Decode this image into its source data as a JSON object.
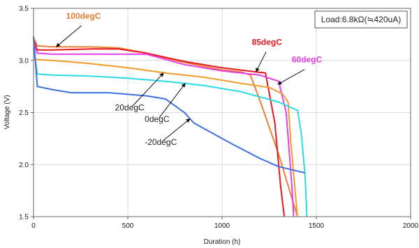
{
  "chart_data": {
    "type": "line",
    "xlabel": "Duration (h)",
    "ylabel": "Voltage (V)",
    "xlim": [
      0,
      2000
    ],
    "ylim": [
      1.5,
      3.5
    ],
    "x_ticks": [
      "0",
      "500",
      "1000",
      "1500",
      "2000"
    ],
    "y_ticks": [
      "1.5",
      "2.0",
      "2.5",
      "3.0",
      "3.5"
    ],
    "load_annotation": "Load:6.8kΩ(≒420uA)",
    "series": [
      {
        "name": "100degC",
        "color": "#ED7D31",
        "points": [
          [
            0,
            3.22
          ],
          [
            20,
            3.14
          ],
          [
            100,
            3.13
          ],
          [
            300,
            3.13
          ],
          [
            450,
            3.12
          ],
          [
            600,
            3.07
          ],
          [
            800,
            2.98
          ],
          [
            1000,
            2.91
          ],
          [
            1100,
            2.89
          ],
          [
            1150,
            2.86
          ],
          [
            1200,
            2.62
          ],
          [
            1300,
            2.1
          ],
          [
            1400,
            1.5
          ]
        ]
      },
      {
        "name": "85degC",
        "color": "#E8171E",
        "points": [
          [
            0,
            3.2
          ],
          [
            20,
            3.1
          ],
          [
            100,
            3.1
          ],
          [
            300,
            3.11
          ],
          [
            450,
            3.11
          ],
          [
            600,
            3.07
          ],
          [
            800,
            2.99
          ],
          [
            1000,
            2.93
          ],
          [
            1180,
            2.89
          ],
          [
            1230,
            2.88
          ],
          [
            1280,
            2.4
          ],
          [
            1310,
            1.8
          ],
          [
            1330,
            1.5
          ]
        ]
      },
      {
        "name": "60degC",
        "color": "#E83CE4",
        "points": [
          [
            0,
            3.18
          ],
          [
            20,
            3.07
          ],
          [
            100,
            3.06
          ],
          [
            300,
            3.06
          ],
          [
            600,
            3.06
          ],
          [
            800,
            2.96
          ],
          [
            1000,
            2.9
          ],
          [
            1100,
            2.88
          ],
          [
            1200,
            2.86
          ],
          [
            1300,
            2.8
          ],
          [
            1340,
            2.5
          ],
          [
            1370,
            1.8
          ],
          [
            1380,
            1.5
          ]
        ]
      },
      {
        "name": "20degC",
        "color": "#F39A2B",
        "points": [
          [
            0,
            3.01
          ],
          [
            100,
            3.0
          ],
          [
            300,
            2.97
          ],
          [
            500,
            2.93
          ],
          [
            700,
            2.88
          ],
          [
            900,
            2.84
          ],
          [
            1100,
            2.78
          ],
          [
            1250,
            2.74
          ],
          [
            1320,
            2.68
          ],
          [
            1350,
            2.6
          ],
          [
            1365,
            2.2
          ],
          [
            1380,
            1.9
          ],
          [
            1400,
            1.5
          ]
        ]
      },
      {
        "name": "0degC",
        "color": "#2CD9E4",
        "points": [
          [
            0,
            3.12
          ],
          [
            20,
            2.87
          ],
          [
            100,
            2.86
          ],
          [
            300,
            2.85
          ],
          [
            500,
            2.83
          ],
          [
            700,
            2.8
          ],
          [
            900,
            2.76
          ],
          [
            1100,
            2.7
          ],
          [
            1300,
            2.6
          ],
          [
            1400,
            2.52
          ],
          [
            1420,
            2.3
          ],
          [
            1440,
            1.9
          ],
          [
            1450,
            1.5
          ]
        ]
      },
      {
        "name": "-20degC",
        "color": "#3E6FE2",
        "points": [
          [
            0,
            3.23
          ],
          [
            20,
            2.75
          ],
          [
            100,
            2.72
          ],
          [
            200,
            2.69
          ],
          [
            400,
            2.69
          ],
          [
            600,
            2.66
          ],
          [
            700,
            2.63
          ],
          [
            800,
            2.5
          ],
          [
            850,
            2.4
          ],
          [
            950,
            2.3
          ],
          [
            1050,
            2.2
          ],
          [
            1200,
            2.06
          ],
          [
            1300,
            1.98
          ],
          [
            1440,
            1.92
          ]
        ]
      }
    ],
    "annotations": [
      {
        "text": "100degC",
        "color": "#ED7D31",
        "bold": true,
        "x": 265,
        "y": 3.4,
        "arrow_to": [
          120,
          3.13
        ]
      },
      {
        "text": "85degC",
        "color": "#E8171E",
        "bold": true,
        "x": 1238,
        "y": 3.15,
        "arrow_to": [
          1180,
          2.89
        ]
      },
      {
        "text": "60degC",
        "color": "#E83CE4",
        "bold": true,
        "x": 1450,
        "y": 2.98,
        "arrow_to": [
          1295,
          2.77
        ]
      },
      {
        "text": "20degC",
        "color": "#222222",
        "bold": false,
        "x": 510,
        "y": 2.52,
        "arrow_to": [
          690,
          2.88
        ]
      },
      {
        "text": "0degC",
        "color": "#222222",
        "bold": false,
        "x": 655,
        "y": 2.41,
        "arrow_to": [
          805,
          2.78
        ]
      },
      {
        "text": "-20degC",
        "color": "#222222",
        "bold": false,
        "x": 675,
        "y": 2.19,
        "arrow_to": [
          830,
          2.44
        ]
      }
    ]
  }
}
